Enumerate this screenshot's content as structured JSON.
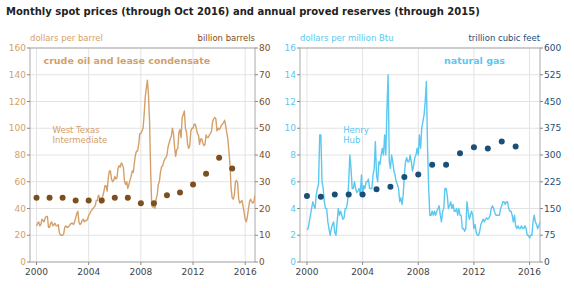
{
  "chart_data": [
    {
      "type": "line",
      "title": "Monthly spot prices (through Oct 2016)  and annual proved reserves  (through 2015)",
      "annotations": [
        "crude oil and lease condensate"
      ],
      "ylabel": "dollars per barrel",
      "y2label": "billion barrels",
      "xlim": [
        1999.5,
        2016.75
      ],
      "xticks": [
        2000,
        2004,
        2008,
        2012,
        2016
      ],
      "ylim": [
        0,
        160
      ],
      "yticks": [
        0,
        20,
        40,
        60,
        80,
        100,
        120,
        140,
        160
      ],
      "y2lim": [
        0,
        80
      ],
      "y2ticks": [
        0,
        10,
        20,
        30,
        40,
        50,
        60,
        70,
        80
      ],
      "grid": true,
      "series": [
        {
          "name": "West Texas\nIntermediate",
          "type": "line",
          "color": "#d4a06a",
          "x": [
            2000.0,
            2000.083,
            2000.167,
            2000.25,
            2000.333,
            2000.417,
            2000.5,
            2000.583,
            2000.667,
            2000.75,
            2000.833,
            2000.917,
            2001.0,
            2001.083,
            2001.167,
            2001.25,
            2001.333,
            2001.417,
            2001.5,
            2001.583,
            2001.667,
            2001.75,
            2001.833,
            2001.917,
            2002.0,
            2002.083,
            2002.167,
            2002.25,
            2002.333,
            2002.417,
            2002.5,
            2002.583,
            2002.667,
            2002.75,
            2002.833,
            2002.917,
            2003.0,
            2003.083,
            2003.167,
            2003.25,
            2003.333,
            2003.417,
            2003.5,
            2003.583,
            2003.667,
            2003.75,
            2003.833,
            2003.917,
            2004.0,
            2004.083,
            2004.167,
            2004.25,
            2004.333,
            2004.417,
            2004.5,
            2004.583,
            2004.667,
            2004.75,
            2004.833,
            2004.917,
            2005.0,
            2005.083,
            2005.167,
            2005.25,
            2005.333,
            2005.417,
            2005.5,
            2005.583,
            2005.667,
            2005.75,
            2005.833,
            2005.917,
            2006.0,
            2006.083,
            2006.167,
            2006.25,
            2006.333,
            2006.417,
            2006.5,
            2006.583,
            2006.667,
            2006.75,
            2006.833,
            2006.917,
            2007.0,
            2007.083,
            2007.167,
            2007.25,
            2007.333,
            2007.417,
            2007.5,
            2007.583,
            2007.667,
            2007.75,
            2007.833,
            2007.917,
            2008.0,
            2008.083,
            2008.167,
            2008.25,
            2008.333,
            2008.417,
            2008.5,
            2008.583,
            2008.667,
            2008.75,
            2008.833,
            2008.917,
            2009.0,
            2009.083,
            2009.167,
            2009.25,
            2009.333,
            2009.417,
            2009.5,
            2009.583,
            2009.667,
            2009.75,
            2009.833,
            2009.917,
            2010.0,
            2010.083,
            2010.167,
            2010.25,
            2010.333,
            2010.417,
            2010.5,
            2010.583,
            2010.667,
            2010.75,
            2010.833,
            2010.917,
            2011.0,
            2011.083,
            2011.167,
            2011.25,
            2011.333,
            2011.417,
            2011.5,
            2011.583,
            2011.667,
            2011.75,
            2011.833,
            2011.917,
            2012.0,
            2012.083,
            2012.167,
            2012.25,
            2012.333,
            2012.417,
            2012.5,
            2012.583,
            2012.667,
            2012.75,
            2012.833,
            2012.917,
            2013.0,
            2013.083,
            2013.167,
            2013.25,
            2013.333,
            2013.417,
            2013.5,
            2013.583,
            2013.667,
            2013.75,
            2013.833,
            2013.917,
            2014.0,
            2014.083,
            2014.167,
            2014.25,
            2014.333,
            2014.417,
            2014.5,
            2014.583,
            2014.667,
            2014.75,
            2014.833,
            2014.917,
            2015.0,
            2015.083,
            2015.167,
            2015.25,
            2015.333,
            2015.417,
            2015.5,
            2015.583,
            2015.667,
            2015.75,
            2015.833,
            2015.917,
            2016.0,
            2016.083,
            2016.167,
            2016.25,
            2016.333,
            2016.417,
            2016.5,
            2016.583,
            2016.667,
            2016.75
          ],
          "values": [
            27,
            29,
            30,
            27,
            28,
            32,
            31,
            30,
            33,
            34,
            34,
            26,
            26,
            29,
            30,
            27,
            28,
            29,
            27,
            27,
            28,
            22,
            20,
            20,
            20,
            21,
            26,
            27,
            26,
            26,
            27,
            28,
            29,
            29,
            28,
            30,
            33,
            36,
            38,
            30,
            28,
            29,
            31,
            32,
            30,
            31,
            31,
            32,
            35,
            36,
            38,
            39,
            40,
            41,
            42,
            46,
            46,
            50,
            48,
            44,
            47,
            49,
            53,
            57,
            57,
            53,
            63,
            68,
            68,
            62,
            60,
            61,
            64,
            62,
            63,
            70,
            72,
            71,
            74,
            73,
            70,
            60,
            58,
            60,
            55,
            58,
            61,
            64,
            68,
            67,
            74,
            80,
            83,
            83,
            88,
            96,
            96,
            98,
            100,
            110,
            123,
            130,
            136,
            125,
            105,
            68,
            42,
            41,
            42,
            40,
            47,
            50,
            58,
            60,
            67,
            71,
            72,
            75,
            77,
            78,
            80,
            86,
            89,
            92,
            94,
            100,
            96,
            86,
            79,
            84,
            85,
            97,
            99,
            93,
            108,
            110,
            113,
            100,
            97,
            88,
            85,
            87,
            98,
            100,
            100,
            103,
            103,
            100,
            96,
            95,
            88,
            92,
            92,
            89,
            87,
            88,
            95,
            93,
            93,
            95,
            96,
            98,
            105,
            107,
            108,
            107,
            98,
            100,
            99,
            100,
            102,
            103,
            104,
            106,
            102,
            97,
            92,
            83,
            73,
            55,
            48,
            47,
            50,
            60,
            61,
            59,
            47,
            44,
            45,
            46,
            42,
            37,
            32,
            30,
            34,
            40,
            45,
            47,
            45,
            44,
            45,
            50
          ]
        },
        {
          "type": "scatter",
          "axis": "y2",
          "color": "#7d4e1e",
          "marker": "circle",
          "x": [
            2000,
            2001,
            2002,
            2003,
            2004,
            2005,
            2006,
            2007,
            2008,
            2009,
            2010,
            2011,
            2012,
            2013,
            2014,
            2015
          ],
          "values": [
            24,
            24,
            24,
            23,
            23,
            23,
            24,
            24,
            22,
            22,
            25,
            26,
            29,
            33,
            39,
            35
          ]
        }
      ]
    },
    {
      "type": "line",
      "annotations": [
        "natural gas"
      ],
      "ylabel": "dollars per million Btu",
      "y2label": "trillion cubic feet",
      "xlim": [
        1999.5,
        2016.75
      ],
      "xticks": [
        2000,
        2004,
        2008,
        2012,
        2016
      ],
      "ylim": [
        0,
        16
      ],
      "yticks": [
        0,
        2,
        4,
        6,
        8,
        10,
        12,
        14,
        16
      ],
      "y2lim": [
        0,
        600
      ],
      "y2ticks": [
        0,
        75,
        150,
        225,
        300,
        375,
        450,
        525,
        600
      ],
      "grid": true,
      "series": [
        {
          "name": "Henry\nHub",
          "type": "line",
          "color": "#5bc8f0",
          "x": [
            2000.0,
            2000.083,
            2000.167,
            2000.25,
            2000.333,
            2000.417,
            2000.5,
            2000.583,
            2000.667,
            2000.75,
            2000.833,
            2000.917,
            2001.0,
            2001.083,
            2001.167,
            2001.25,
            2001.333,
            2001.417,
            2001.5,
            2001.583,
            2001.667,
            2001.75,
            2001.833,
            2001.917,
            2002.0,
            2002.083,
            2002.167,
            2002.25,
            2002.333,
            2002.417,
            2002.5,
            2002.583,
            2002.667,
            2002.75,
            2002.833,
            2002.917,
            2003.0,
            2003.083,
            2003.167,
            2003.25,
            2003.333,
            2003.417,
            2003.5,
            2003.583,
            2003.667,
            2003.75,
            2003.833,
            2003.917,
            2004.0,
            2004.083,
            2004.167,
            2004.25,
            2004.333,
            2004.417,
            2004.5,
            2004.583,
            2004.667,
            2004.75,
            2004.833,
            2004.917,
            2005.0,
            2005.083,
            2005.167,
            2005.25,
            2005.333,
            2005.417,
            2005.5,
            2005.583,
            2005.667,
            2005.75,
            2005.833,
            2005.917,
            2006.0,
            2006.083,
            2006.167,
            2006.25,
            2006.333,
            2006.417,
            2006.5,
            2006.583,
            2006.667,
            2006.75,
            2006.833,
            2006.917,
            2007.0,
            2007.083,
            2007.167,
            2007.25,
            2007.333,
            2007.417,
            2007.5,
            2007.583,
            2007.667,
            2007.75,
            2007.833,
            2007.917,
            2008.0,
            2008.083,
            2008.167,
            2008.25,
            2008.333,
            2008.417,
            2008.5,
            2008.583,
            2008.667,
            2008.75,
            2008.833,
            2008.917,
            2009.0,
            2009.083,
            2009.167,
            2009.25,
            2009.333,
            2009.417,
            2009.5,
            2009.583,
            2009.667,
            2009.75,
            2009.833,
            2009.917,
            2010.0,
            2010.083,
            2010.167,
            2010.25,
            2010.333,
            2010.417,
            2010.5,
            2010.583,
            2010.667,
            2010.75,
            2010.833,
            2010.917,
            2011.0,
            2011.083,
            2011.167,
            2011.25,
            2011.333,
            2011.417,
            2011.5,
            2011.583,
            2011.667,
            2011.75,
            2011.833,
            2011.917,
            2012.0,
            2012.083,
            2012.167,
            2012.25,
            2012.333,
            2012.417,
            2012.5,
            2012.583,
            2012.667,
            2012.75,
            2012.833,
            2012.917,
            2013.0,
            2013.083,
            2013.167,
            2013.25,
            2013.333,
            2013.417,
            2013.5,
            2013.583,
            2013.667,
            2013.75,
            2013.833,
            2013.917,
            2014.0,
            2014.083,
            2014.167,
            2014.25,
            2014.333,
            2014.417,
            2014.5,
            2014.583,
            2014.667,
            2014.75,
            2014.833,
            2014.917,
            2015.0,
            2015.083,
            2015.167,
            2015.25,
            2015.333,
            2015.417,
            2015.5,
            2015.583,
            2015.667,
            2015.75,
            2015.833,
            2015.917,
            2016.0,
            2016.083,
            2016.167,
            2016.25,
            2016.333,
            2016.417,
            2016.5,
            2016.583,
            2016.667,
            2016.75
          ],
          "values": [
            2.4,
            2.5,
            3.0,
            3.5,
            4.0,
            4.5,
            4.2,
            4.0,
            5.0,
            5.5,
            5.8,
            9.5,
            9.5,
            6.0,
            5.5,
            4.5,
            4.0,
            4.0,
            3.0,
            2.5,
            2.0,
            2.5,
            2.8,
            3.0,
            2.2,
            2.0,
            3.0,
            4.0,
            3.5,
            3.8,
            3.5,
            3.2,
            3.3,
            4.0,
            4.0,
            4.5,
            6.0,
            8.0,
            7.0,
            5.5,
            5.5,
            6.0,
            5.5,
            5.2,
            5.3,
            5.5,
            5.0,
            6.5,
            5.0,
            5.7,
            5.5,
            6.0,
            6.0,
            6.2,
            5.5,
            5.5,
            5.5,
            6.5,
            7.0,
            9.0,
            6.5,
            6.0,
            7.5,
            7.3,
            8.0,
            8.5,
            8.0,
            9.5,
            8.0,
            11.5,
            14.0,
            7.5,
            7.0,
            8.0,
            7.5,
            6.8,
            6.5,
            6.0,
            5.8,
            5.5,
            4.5,
            4.8,
            4.3,
            5.0,
            6.5,
            7.5,
            7.8,
            7.5,
            7.5,
            8.0,
            7.5,
            6.8,
            7.2,
            7.8,
            8.0,
            8.5,
            8.0,
            9.5,
            8.5,
            10.0,
            10.5,
            11.0,
            12.0,
            13.5,
            8.5,
            5.5,
            3.5,
            3.5,
            3.8,
            3.5,
            3.8,
            3.5,
            3.8,
            4.0,
            4.2,
            3.5,
            3.0,
            3.8,
            4.0,
            5.5,
            5.5,
            5.0,
            4.0,
            4.2,
            4.5,
            4.0,
            4.3,
            3.8,
            3.8,
            4.0,
            3.5,
            4.0,
            3.5,
            3.5,
            2.5,
            2.5,
            2.3,
            2.5,
            4.5,
            3.8,
            3.2,
            3.5,
            3.8,
            3.5,
            2.5,
            2.8,
            2.2,
            2.0,
            2.0,
            2.3,
            2.8,
            3.0,
            3.2,
            3.0,
            3.2,
            3.3,
            3.2,
            3.3,
            3.5,
            4.0,
            4.2,
            4.0,
            3.7,
            3.5,
            3.5,
            3.5,
            3.5,
            4.0,
            4.2,
            4.5,
            4.5,
            4.3,
            4.5,
            4.5,
            4.0,
            3.8,
            3.8,
            3.5,
            3.0,
            3.5,
            2.7,
            2.5,
            2.7,
            2.5,
            2.5,
            2.7,
            2.5,
            2.5,
            2.7,
            2.5,
            2.0,
            2.0,
            1.8,
            2.0,
            2.0,
            3.0,
            3.5,
            3.0,
            2.8,
            2.5,
            2.7,
            3.0
          ]
        },
        {
          "type": "scatter",
          "axis": "y2",
          "color": "#1a4f7a",
          "marker": "circle",
          "x": [
            2000,
            2001,
            2002,
            2003,
            2004,
            2005,
            2006,
            2007,
            2008,
            2009,
            2010,
            2011,
            2012,
            2013,
            2014,
            2015
          ],
          "values": [
            185,
            183,
            189,
            189,
            189,
            204,
            211,
            238,
            245,
            273,
            273,
            305,
            322,
            318,
            338,
            324
          ]
        }
      ]
    }
  ]
}
